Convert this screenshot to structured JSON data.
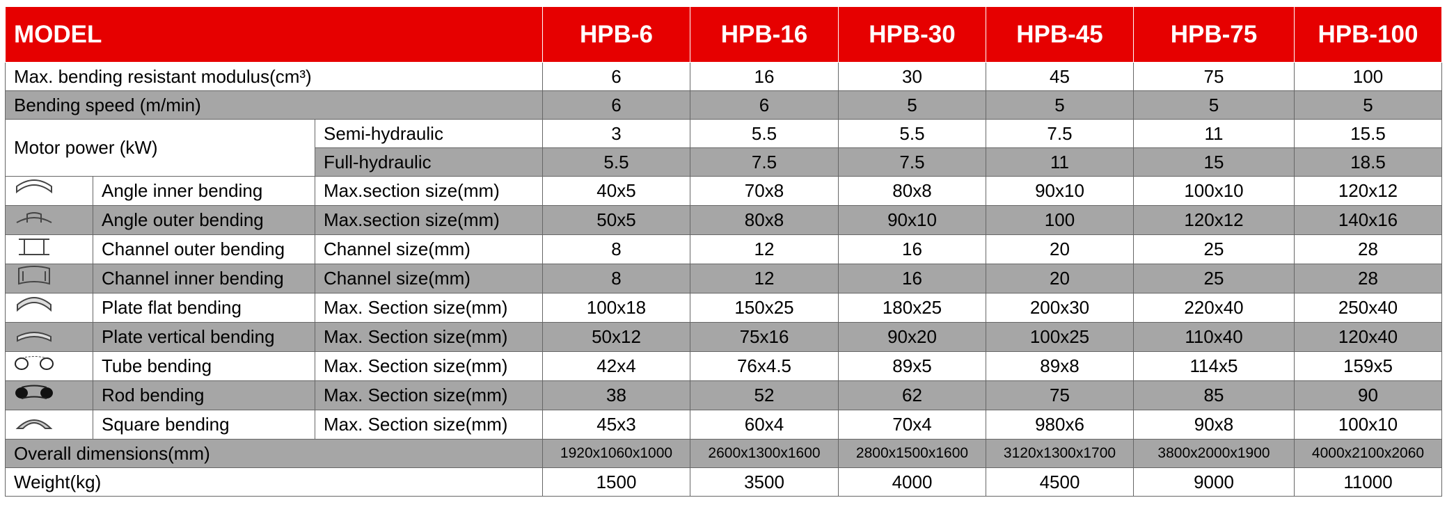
{
  "header": {
    "model": "MODEL",
    "columns": [
      "HPB-6",
      "HPB-16",
      "HPB-30",
      "HPB-45",
      "HPB-75",
      "HPB-100"
    ]
  },
  "rows": [
    {
      "label": "Max. bending resistant modulus(cm³)",
      "values": [
        6,
        16,
        30,
        45,
        75,
        100
      ]
    },
    {
      "label": "Bending speed (m/min)",
      "values": [
        6,
        6,
        5,
        5,
        5,
        5
      ]
    },
    {
      "label": "Motor power (kW)",
      "subrows": [
        {
          "sub": "Semi-hydraulic",
          "values": [
            3,
            5.5,
            5.5,
            7.5,
            11,
            15.5
          ]
        },
        {
          "sub": "Full-hydraulic",
          "values": [
            5.5,
            7.5,
            7.5,
            11,
            15,
            18.5
          ]
        }
      ]
    },
    {
      "label": "Angle inner bending",
      "sub": "Max.section size(mm)",
      "values": [
        "40x5",
        "70x8",
        "80x8",
        "90x10",
        "100x10",
        "120x12"
      ]
    },
    {
      "label": "Angle outer bending",
      "sub": "Max.section size(mm)",
      "values": [
        "50x5",
        "80x8",
        "90x10",
        100,
        "120x12",
        "140x16"
      ]
    },
    {
      "label": "Channel outer bending",
      "sub": "Channel size(mm)",
      "values": [
        8,
        12,
        16,
        20,
        25,
        28
      ]
    },
    {
      "label": "Channel inner bending",
      "sub": "Channel size(mm)",
      "values": [
        8,
        12,
        16,
        20,
        25,
        28
      ]
    },
    {
      "label": "Plate flat bending",
      "sub": "Max. Section size(mm)",
      "values": [
        "100x18",
        "150x25",
        "180x25",
        "200x30",
        "220x40",
        "250x40"
      ]
    },
    {
      "label": "Plate vertical bending",
      "sub": "Max. Section size(mm)",
      "values": [
        "50x12",
        "75x16",
        "90x20",
        "100x25",
        "110x40",
        "120x40"
      ]
    },
    {
      "label": "Tube bending",
      "sub": "Max. Section size(mm)",
      "values": [
        "42x4",
        "76x4.5",
        "89x5",
        "89x8",
        "114x5",
        "159x5"
      ]
    },
    {
      "label": "Rod bending",
      "sub": "Max. Section size(mm)",
      "values": [
        38,
        52,
        62,
        75,
        85,
        90
      ]
    },
    {
      "label": "Square bending",
      "sub": "Max. Section size(mm)",
      "values": [
        "45x3",
        "60x4",
        "70x4",
        "980x6",
        "90x8",
        "100x10"
      ]
    },
    {
      "label": "Overall dimensions(mm)",
      "values": [
        "1920x1060x1000",
        "2600x1300x1600",
        "2800x1500x1600",
        "3120x1300x1700",
        "3800x2000x1900",
        "4000x2100x2060"
      ]
    },
    {
      "label": "Weight(kg)",
      "values": [
        1500,
        3500,
        4000,
        4500,
        9000,
        11000
      ]
    }
  ]
}
